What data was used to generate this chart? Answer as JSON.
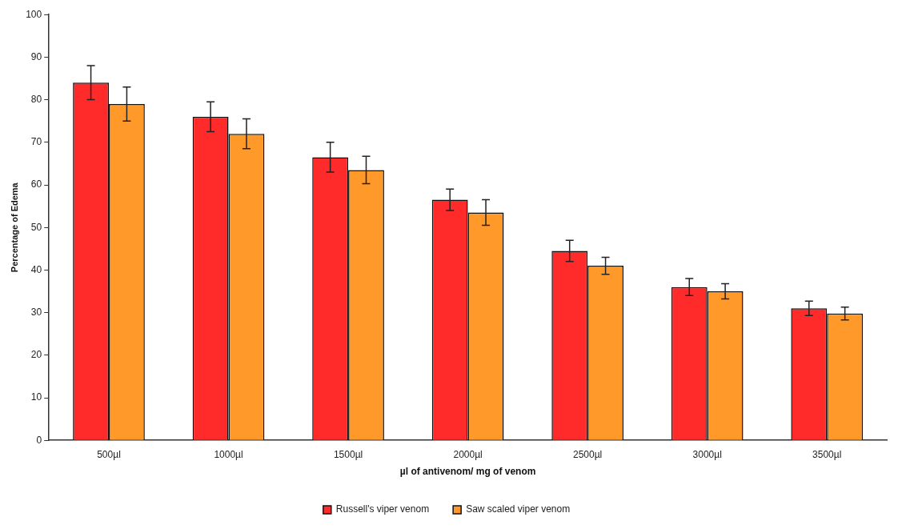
{
  "chart_data": {
    "type": "bar",
    "xlabel": "µl of antivenom/ mg of venom",
    "ylabel": "Percentage of Edema",
    "categories": [
      "500µl",
      "1000µl",
      "1500µl",
      "2000µl",
      "2500µl",
      "3000µl",
      "3500µl"
    ],
    "series": [
      {
        "name": "Russell's viper venom",
        "color": "#ff2a2a",
        "values": [
          84,
          76,
          66.5,
          56.5,
          44.5,
          36,
          31
        ],
        "errors": [
          4,
          3.5,
          3.5,
          2.5,
          2.5,
          2,
          1.7
        ]
      },
      {
        "name": "Saw scaled viper venom",
        "color": "#ff9a2a",
        "values": [
          79,
          72,
          63.5,
          53.5,
          41,
          35,
          29.8
        ],
        "errors": [
          4,
          3.5,
          3.2,
          3,
          2,
          1.8,
          1.5
        ]
      }
    ],
    "ylim": [
      0,
      100
    ],
    "yticks": [
      0,
      10,
      20,
      30,
      40,
      50,
      60,
      70,
      80,
      90,
      100
    ],
    "grid": false,
    "legend": "bottom"
  }
}
